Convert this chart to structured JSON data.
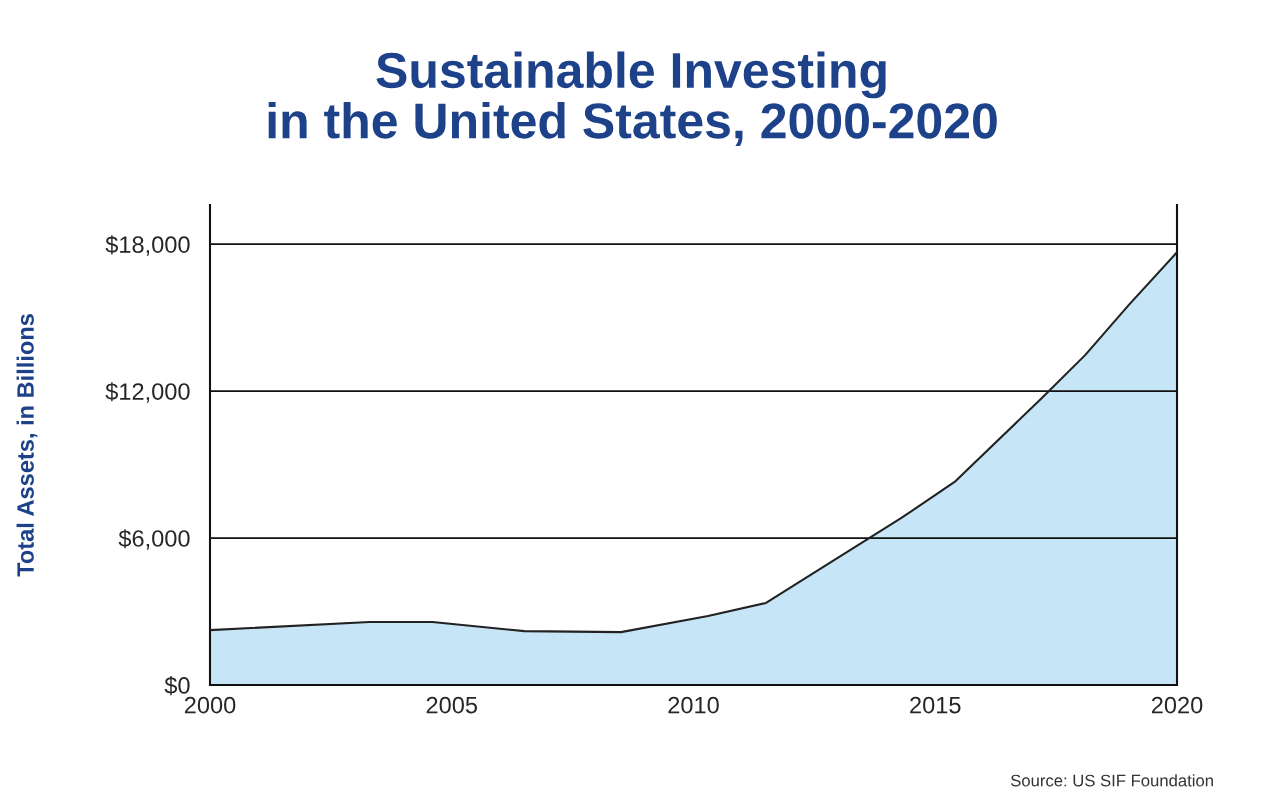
{
  "chart_data": {
    "type": "area",
    "title": "Sustainable Investing\nin the United States, 2000-2020",
    "ylabel": "Total Assets, in Billions",
    "x": [
      2000,
      2003.3,
      2004.6,
      2006.5,
      2008.5,
      2010.3,
      2011.5,
      2013.6,
      2014.3,
      2015.4,
      2017.2,
      2018.1,
      2019.0,
      2020
    ],
    "series": [
      {
        "color": "#c6e6f7",
        "values": [
          2240,
          2570,
          2570,
          2200,
          2160,
          2820,
          3350,
          5960,
          6820,
          8290,
          11710,
          13470,
          15510,
          17670
        ]
      }
    ],
    "xlim": [
      2000,
      2020
    ],
    "xticks": [
      2000,
      2005,
      2010,
      2015,
      2020
    ],
    "ylim": [
      0,
      19600
    ],
    "yticks": [
      {
        "value": 0,
        "label": "$0"
      },
      {
        "value": 6000,
        "label": "$6,000"
      },
      {
        "value": 12000,
        "label": "$12,000"
      },
      {
        "value": 18000,
        "label": "$18,000"
      }
    ],
    "grid": "y",
    "annotations": [
      "Source: US SIF Foundation"
    ]
  }
}
